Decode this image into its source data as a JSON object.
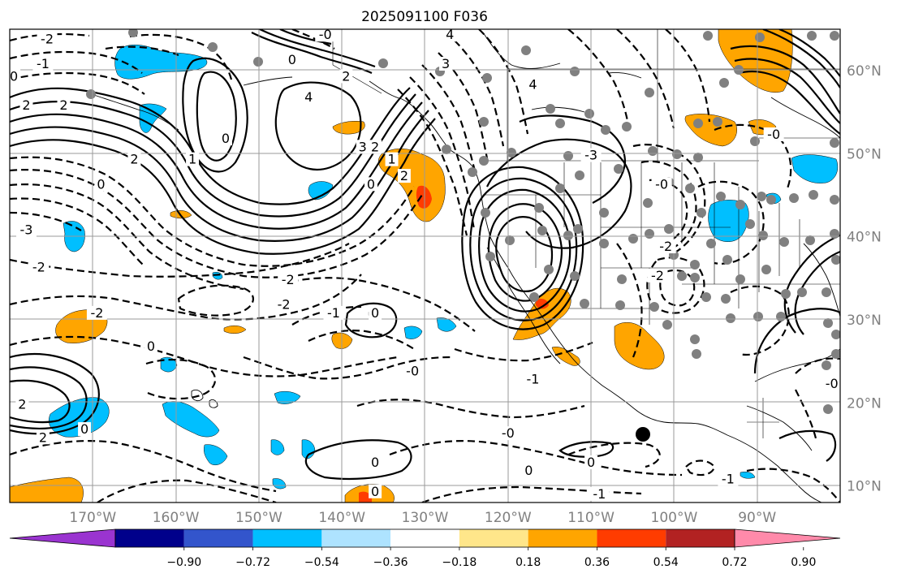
{
  "title": "2025091100 F036",
  "map": {
    "projection": "plate-carree",
    "lon_range": [
      -180,
      -80
    ],
    "lat_range": [
      8,
      65
    ],
    "gridlines": true,
    "longitude_labels": [
      "170°W",
      "160°W",
      "150°W",
      "140°W",
      "130°W",
      "120°W",
      "110°W",
      "100°W",
      "90°W"
    ],
    "latitude_labels": [
      "60°N",
      "50°N",
      "40°N",
      "30°N",
      "20°N",
      "10°N"
    ],
    "contour_labels": [
      {
        "text": "-2",
        "lon": -175.5,
        "lat": 63.5
      },
      {
        "text": "-1",
        "lon": -176,
        "lat": 60.5
      },
      {
        "text": "0",
        "lon": -179.5,
        "lat": 59
      },
      {
        "text": "2",
        "lon": -178,
        "lat": 55.5
      },
      {
        "text": "2",
        "lon": -173.5,
        "lat": 55.5
      },
      {
        "text": "4",
        "lon": -144,
        "lat": 56.5
      },
      {
        "text": "0",
        "lon": -154,
        "lat": 51.5
      },
      {
        "text": "2",
        "lon": -165,
        "lat": 49
      },
      {
        "text": "1",
        "lon": -158,
        "lat": 49
      },
      {
        "text": "0",
        "lon": -169,
        "lat": 46
      },
      {
        "text": "4",
        "lon": -127,
        "lat": 64
      },
      {
        "text": "3",
        "lon": -127.5,
        "lat": 60.5
      },
      {
        "text": "4",
        "lon": -117,
        "lat": 58
      },
      {
        "text": "-0",
        "lon": -142,
        "lat": 64
      },
      {
        "text": "0",
        "lon": -146,
        "lat": 61
      },
      {
        "text": "2",
        "lon": -139.5,
        "lat": 59
      },
      {
        "text": "3",
        "lon": -137.5,
        "lat": 50.5
      },
      {
        "text": "2",
        "lon": -136,
        "lat": 50.5
      },
      {
        "text": "1",
        "lon": -134,
        "lat": 49
      },
      {
        "text": "0",
        "lon": -136.5,
        "lat": 46
      },
      {
        "text": "2",
        "lon": -132.5,
        "lat": 47
      },
      {
        "text": "-3",
        "lon": -178,
        "lat": 40.5
      },
      {
        "text": "-2",
        "lon": -176.5,
        "lat": 36
      },
      {
        "text": "-2",
        "lon": -146.5,
        "lat": 34.5
      },
      {
        "text": "-2",
        "lon": -147,
        "lat": 31.5
      },
      {
        "text": "-1",
        "lon": -141,
        "lat": 30.5
      },
      {
        "text": "-2",
        "lon": -169.5,
        "lat": 30.5
      },
      {
        "text": "0",
        "lon": -163,
        "lat": 26.5
      },
      {
        "text": "0",
        "lon": -136,
        "lat": 30.5
      },
      {
        "text": "-0",
        "lon": -131.5,
        "lat": 23.5
      },
      {
        "text": "-1",
        "lon": -117,
        "lat": 22.5
      },
      {
        "text": "2",
        "lon": -178.5,
        "lat": 19.5
      },
      {
        "text": "2",
        "lon": -176,
        "lat": 15.5
      },
      {
        "text": "0",
        "lon": -171,
        "lat": 16.5
      },
      {
        "text": "-0",
        "lon": -120,
        "lat": 16
      },
      {
        "text": "0",
        "lon": -136,
        "lat": 12.5
      },
      {
        "text": "0",
        "lon": -117.5,
        "lat": 11.5
      },
      {
        "text": "0",
        "lon": -110,
        "lat": 12.5
      },
      {
        "text": "-1",
        "lon": -109,
        "lat": 8.7
      },
      {
        "text": "0",
        "lon": -136,
        "lat": 9
      },
      {
        "text": "-1",
        "lon": -93.5,
        "lat": 10.5
      },
      {
        "text": "-3",
        "lon": -110,
        "lat": 49.5
      },
      {
        "text": "-0",
        "lon": -101.5,
        "lat": 46
      },
      {
        "text": "-2",
        "lon": -101,
        "lat": 38.5
      },
      {
        "text": "-2",
        "lon": -102,
        "lat": 35
      },
      {
        "text": "-0",
        "lon": -88,
        "lat": 52
      },
      {
        "text": "-0",
        "lon": -81,
        "lat": 22
      }
    ]
  },
  "colorbar": {
    "tick_labels": [
      "−0.90",
      "−0.72",
      "−0.54",
      "−0.36",
      "−0.18",
      "0.18",
      "0.36",
      "0.54",
      "0.72",
      "0.90"
    ],
    "colors": [
      "#9a34d0",
      "#00008b",
      "#3355cc",
      "#00bfff",
      "#aee3ff",
      "#ffffff",
      "#ffe68a",
      "#ffa500",
      "#ff3c00",
      "#b22222",
      "#ff8aaa"
    ],
    "extend": "both"
  },
  "colors": {
    "positive_shading": "#ffa500",
    "strong_positive": "#ff3c00",
    "negative_shading": "#00bfff",
    "station_dot": "#808080",
    "marker": "#000000"
  }
}
